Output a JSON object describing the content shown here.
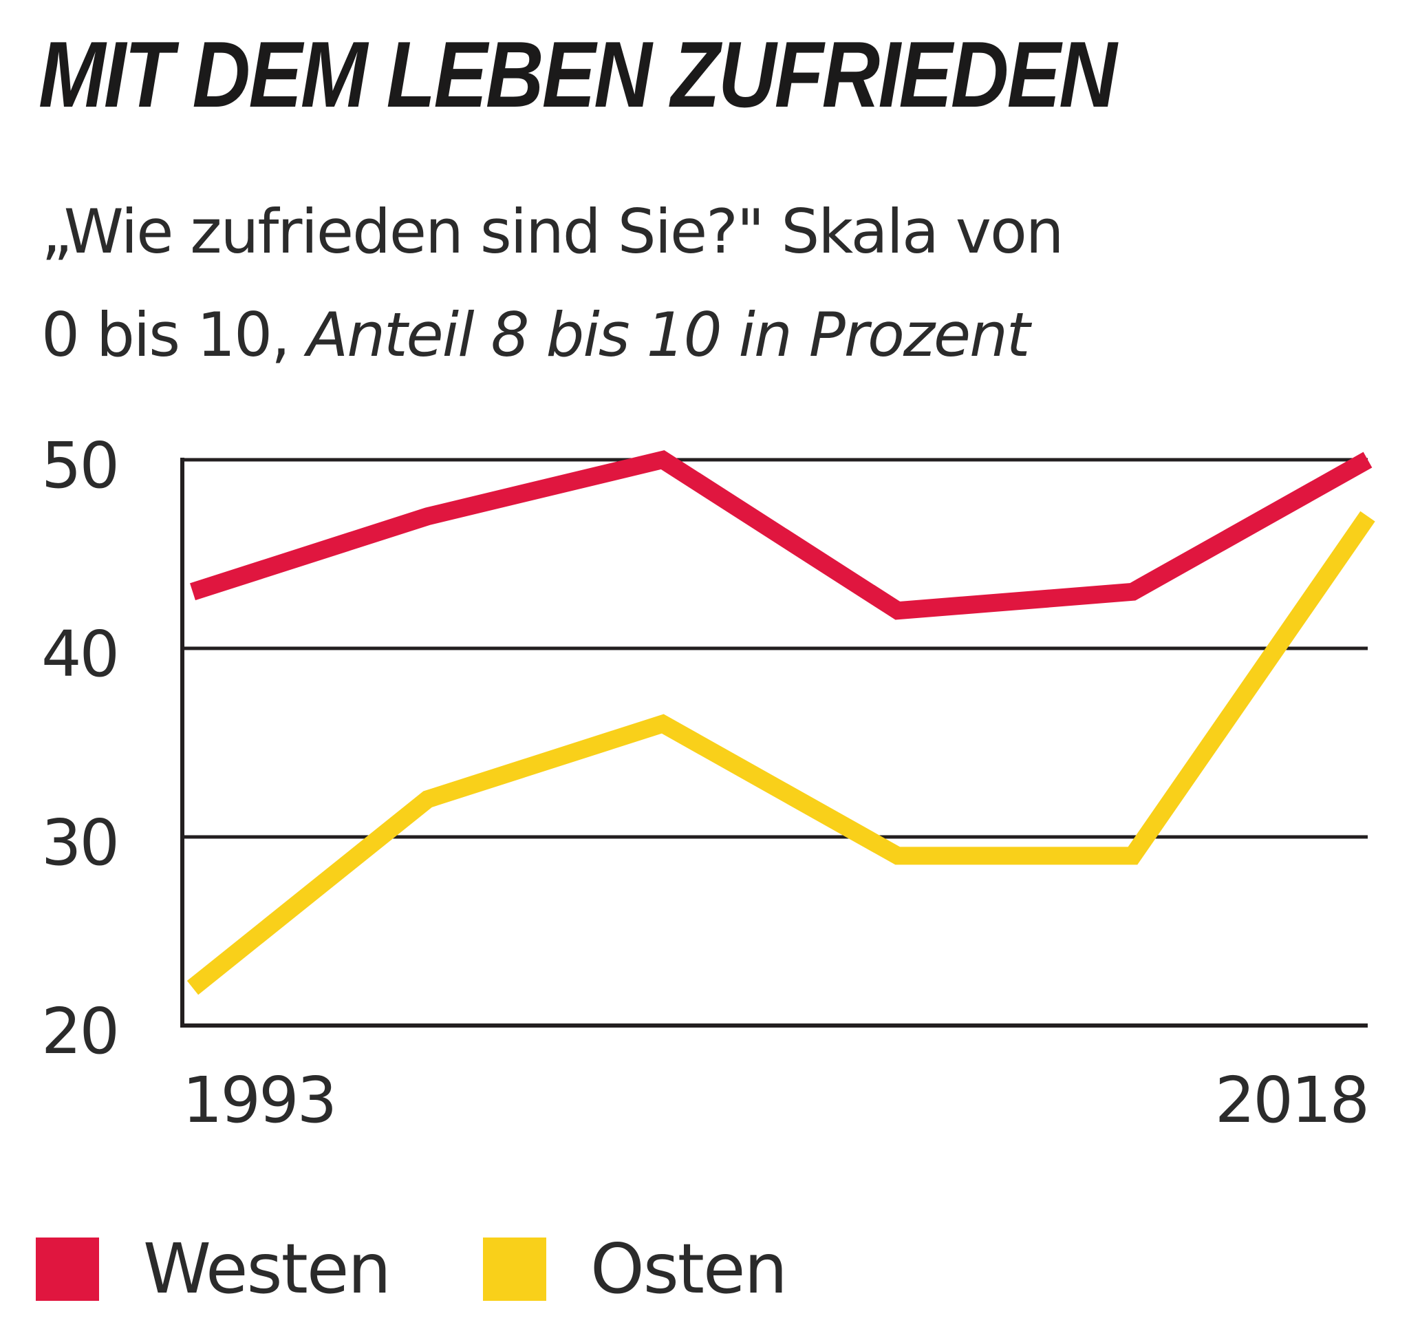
{
  "header": {
    "title": "MIT DEM LEBEN ZUFRIEDEN",
    "subtitle_line1": "„Wie zufrieden sind Sie?\" Skala von",
    "subtitle_line2_plain": "0 bis 10, ",
    "subtitle_line2_italic": "Anteil 8 bis 10 in Prozent"
  },
  "chart_data": {
    "type": "line",
    "x": [
      1993,
      1998,
      2003,
      2008,
      2013,
      2018
    ],
    "x_tick_labels": [
      "1993",
      "2018"
    ],
    "y_ticks": [
      "50",
      "40",
      "30",
      "20"
    ],
    "ylim": [
      20,
      50
    ],
    "grid": "horizontal",
    "legend_position": "bottom-left",
    "series": [
      {
        "name": "Westen",
        "color": "#e0163f",
        "values": [
          43,
          47,
          50,
          42,
          43,
          50
        ]
      },
      {
        "name": "Osten",
        "color": "#f9d01a",
        "values": [
          22,
          32,
          36,
          29,
          29,
          47
        ]
      }
    ]
  },
  "colors": {
    "grid": "#231f20",
    "text": "#2b2b2b"
  }
}
